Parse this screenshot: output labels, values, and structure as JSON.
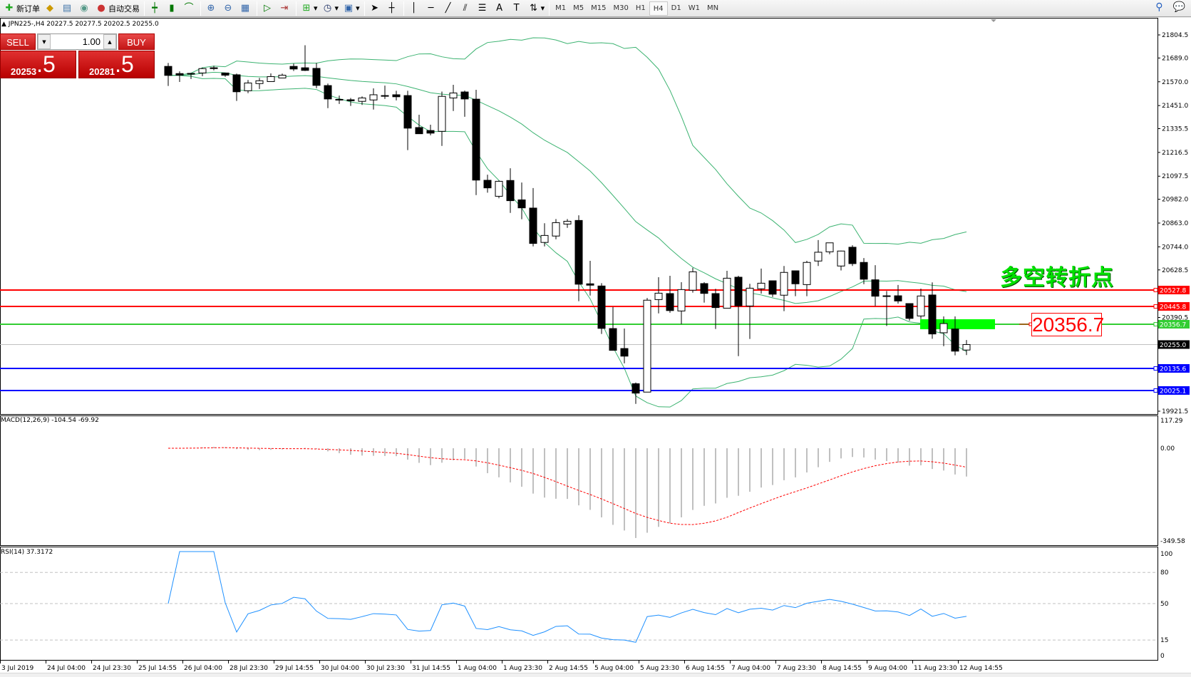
{
  "toolbar": {
    "items": [
      {
        "label": "新订单",
        "icon": "new-order-icon"
      },
      {
        "label": "",
        "icon": "history-center-icon"
      },
      {
        "label": "",
        "icon": "market-watch-icon"
      },
      {
        "label": "",
        "icon": "signals-icon"
      },
      {
        "label": "自动交易",
        "icon": "auto-trading-icon"
      }
    ],
    "tools": [
      "bar-chart-icon",
      "candlestick-icon",
      "line-chart-icon",
      "zoom-in-icon",
      "zoom-out-icon",
      "tile-windows-icon",
      "auto-scroll-icon",
      "chart-shift-icon",
      "indicators-icon",
      "periods-icon",
      "templates-icon",
      "cursor-icon",
      "crosshair-icon",
      "vertical-line-icon",
      "horizontal-line-icon",
      "trendline-icon",
      "equidistant-channel-icon",
      "fibonacci-icon",
      "text-icon",
      "text-label-icon",
      "arrows-icon"
    ],
    "timeframes": [
      "M1",
      "M5",
      "M15",
      "M30",
      "H1",
      "H4",
      "D1",
      "W1",
      "MN"
    ],
    "active_timeframe": "H4"
  },
  "chart": {
    "title": "JPN225-,H4  20227.5 20277.5 20202.5 20255.0",
    "symbol": "JPN225-",
    "period": "H4"
  },
  "trade_panel": {
    "sell_label": "SELL",
    "buy_label": "BUY",
    "lot": "1.00",
    "sell_price_main": "20253",
    "sell_price_big": ".5",
    "buy_price_main": "20281",
    "buy_price_big": ".5"
  },
  "annotation": {
    "text": "多空转折点",
    "level_label": "20356.7",
    "color": "#00e000"
  },
  "chart_data": {
    "type": "candlestick",
    "ohlc_order": [
      "open",
      "high",
      "low",
      "close"
    ],
    "candles": [
      [
        21647,
        21664,
        21549,
        21602
      ],
      [
        21611,
        21622,
        21569,
        21603
      ],
      [
        21612,
        21613,
        21584,
        21611
      ],
      [
        21614,
        21641,
        21598,
        21636
      ],
      [
        21640,
        21650,
        21627,
        21636
      ],
      [
        21614,
        21614,
        21595,
        21603
      ],
      [
        21605,
        21611,
        21474,
        21520
      ],
      [
        21525,
        21579,
        21513,
        21564
      ],
      [
        21561,
        21589,
        21534,
        21575
      ],
      [
        21571,
        21612,
        21571,
        21596
      ],
      [
        21589,
        21611,
        21589,
        21603
      ],
      [
        21647,
        21661,
        21624,
        21634
      ],
      [
        21640,
        21753,
        21624,
        21627
      ],
      [
        21637,
        21664,
        21538,
        21552
      ],
      [
        21551,
        21561,
        21438,
        21484
      ],
      [
        21482,
        21501,
        21459,
        21482
      ],
      [
        21480,
        21489,
        21449,
        21475
      ],
      [
        21472,
        21497,
        21454,
        21489
      ],
      [
        21479,
        21537,
        21431,
        21505
      ],
      [
        21501,
        21551,
        21484,
        21501
      ],
      [
        21505,
        21525,
        21477,
        21495
      ],
      [
        21501,
        21525,
        21228,
        21338
      ],
      [
        21341,
        21405,
        21310,
        21310
      ],
      [
        21326,
        21355,
        21302,
        21313
      ],
      [
        21322,
        21521,
        21249,
        21497
      ],
      [
        21489,
        21555,
        21424,
        21514
      ],
      [
        21519,
        21526,
        21395,
        21484
      ],
      [
        21483,
        21530,
        21003,
        21078
      ],
      [
        21077,
        21105,
        21015,
        21039
      ],
      [
        20997,
        21076,
        20987,
        21072
      ],
      [
        21076,
        21137,
        20914,
        20975
      ],
      [
        20979,
        21066,
        20882,
        20939
      ],
      [
        20938,
        21038,
        20746,
        20761
      ],
      [
        20766,
        20862,
        20746,
        20801
      ],
      [
        20798,
        20883,
        20782,
        20865
      ],
      [
        20858,
        20883,
        20839,
        20872
      ],
      [
        20876,
        20902,
        20472,
        20557
      ],
      [
        20559,
        20674,
        20500,
        20552
      ],
      [
        20548,
        20562,
        20308,
        20336
      ],
      [
        20335,
        20443,
        20226,
        20226
      ],
      [
        20235,
        20335,
        20161,
        20197
      ],
      [
        20059,
        20065,
        19958,
        20012
      ],
      [
        20017,
        20488,
        20017,
        20477
      ],
      [
        20480,
        20592,
        20411,
        20512
      ],
      [
        20510,
        20599,
        20414,
        20425
      ],
      [
        20423,
        20567,
        20357,
        20530
      ],
      [
        20527,
        20639,
        20515,
        20619
      ],
      [
        20560,
        20567,
        20465,
        20511
      ],
      [
        20510,
        20534,
        20333,
        20440
      ],
      [
        20437,
        20624,
        20437,
        20587
      ],
      [
        20592,
        20599,
        20197,
        20449
      ],
      [
        20448,
        20559,
        20283,
        20537
      ],
      [
        20534,
        20635,
        20510,
        20562
      ],
      [
        20574,
        20574,
        20493,
        20507
      ],
      [
        20502,
        20648,
        20422,
        20616
      ],
      [
        20624,
        20624,
        20497,
        20559
      ],
      [
        20555,
        20674,
        20497,
        20666
      ],
      [
        20673,
        20778,
        20648,
        20717
      ],
      [
        20719,
        20764,
        20707,
        20764
      ],
      [
        20648,
        20725,
        20626,
        20723
      ],
      [
        20742,
        20752,
        20648,
        20660
      ],
      [
        20666,
        20688,
        20557,
        20582
      ],
      [
        20579,
        20652,
        20448,
        20497
      ],
      [
        20499,
        20523,
        20348,
        20499
      ],
      [
        20499,
        20553,
        20460,
        20473
      ],
      [
        20460,
        20460,
        20374,
        20386
      ],
      [
        20398,
        20535,
        20383,
        20498
      ],
      [
        20503,
        20566,
        20284,
        20308
      ],
      [
        20314,
        20396,
        20247,
        20360
      ],
      [
        20333,
        20396,
        20201,
        20222
      ],
      [
        20227.5,
        20277.5,
        20202.5,
        20255.0
      ]
    ],
    "price_axis_ticks": [
      "21804.5",
      "21689.0",
      "21570.0",
      "21451.0",
      "21335.5",
      "21216.5",
      "21097.5",
      "20982.0",
      "20863.0",
      "20744.0",
      "20628.5",
      "20390.5",
      "19921.5"
    ],
    "ylim": [
      19921.5,
      21804.5
    ],
    "time_labels": [
      "3 Jul 2019",
      "24 Jul 04:00",
      "24 Jul 23:30",
      "25 Jul 14:55",
      "26 Jul 04:00",
      "28 Jul 23:30",
      "29 Jul 14:55",
      "30 Jul 04:00",
      "30 Jul 23:30",
      "31 Jul 14:55",
      "1 Aug 04:00",
      "1 Aug 23:30",
      "2 Aug 14:55",
      "5 Aug 04:00",
      "5 Aug 23:30",
      "6 Aug 14:55",
      "7 Aug 04:00",
      "7 Aug 23:30",
      "8 Aug 14:55",
      "9 Aug 04:00",
      "11 Aug 23:30",
      "12 Aug 14:55"
    ],
    "levels": [
      {
        "value": 20527.8,
        "label": "20527.8",
        "color": "#ff0000"
      },
      {
        "value": 20445.8,
        "label": "20445.8",
        "color": "#ff0000"
      },
      {
        "value": 20356.7,
        "label": "20356.7",
        "color": "#32cd32"
      },
      {
        "value": 20255.0,
        "label": "20255.0",
        "color": "#000000",
        "current": true
      },
      {
        "value": 20135.6,
        "label": "20135.6",
        "color": "#0000ff"
      },
      {
        "value": 20025.1,
        "label": "20025.1",
        "color": "#0000ff"
      }
    ],
    "bollinger": {
      "period": 20,
      "deviation": 2,
      "color": "#3cb371"
    },
    "macd": {
      "label": "MACD(12,26,9) -104.54 -69.92",
      "ylim": [
        -349.58,
        117.29
      ],
      "ticks": [
        "117.29",
        "0.00",
        "-349.58"
      ],
      "hist_color": "#c0c0c0",
      "signal_color": "#ff0000"
    },
    "rsi": {
      "label": "RSI(14) 37.3172",
      "ylim": [
        0,
        100
      ],
      "ticks": [
        "100",
        "80",
        "50",
        "15",
        "0"
      ],
      "levels": [
        80,
        50,
        15
      ],
      "color": "#1e90ff"
    }
  }
}
